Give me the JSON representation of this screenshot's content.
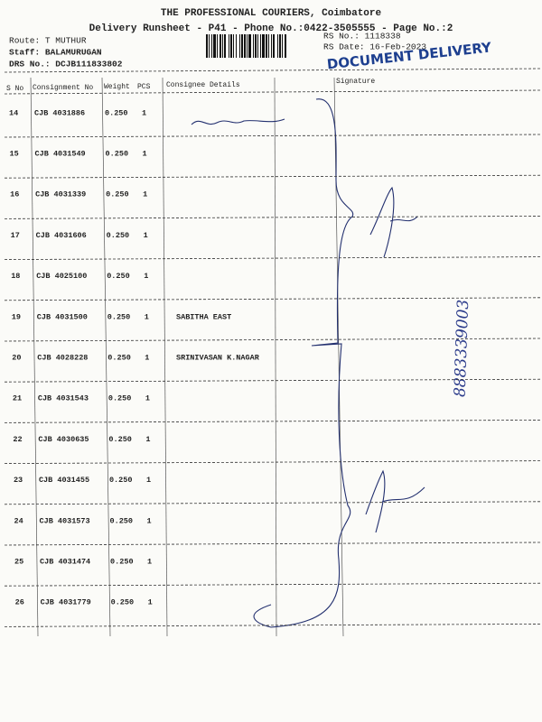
{
  "header": {
    "title": "THE PROFESSIONAL COURIERS, Coimbatore",
    "subtitle": "Delivery Runsheet - P41 - Phone No.:0422-3505555 - Page No.:2",
    "route": "Route: T MUTHUR",
    "staff": "Staff: BALAMURUGAN",
    "drs": "DRS No.: DCJB111833802",
    "rs_no": "RS No.: 1118338",
    "rs_date": "RS Date: 16-Feb-2023",
    "stamp": "DOCUMENT DELIVERY"
  },
  "table": {
    "columns": [
      "S No",
      "Consignment No",
      "Weight",
      "PCS",
      "Consignee Details",
      "Signature"
    ],
    "rows": [
      [
        14,
        "CJB 4031886",
        "0.250",
        1
      ],
      [
        15,
        "CJB 4031549",
        "0.250",
        1
      ],
      [
        16,
        "CJB 4031339",
        "0.250",
        1
      ],
      [
        17,
        "CJB 4031606",
        "0.250",
        1
      ],
      [
        18,
        "CJB 4025100",
        "0.250",
        1
      ],
      [
        19,
        "CJB 4031500",
        "0.250",
        1,
        "SABITHA  EAST"
      ],
      [
        20,
        "CJB 4028228",
        "0.250",
        1,
        "SRINIVASAN    K.NAGAR"
      ],
      [
        21,
        "CJB 4031543",
        "0.250",
        1
      ],
      [
        22,
        "CJB 4030635",
        "0.250",
        1
      ],
      [
        23,
        "CJB 4031455",
        "0.250",
        1
      ],
      [
        24,
        "CJB 4031573",
        "0.250",
        1
      ],
      [
        25,
        "CJB 4031474",
        "0.250",
        1
      ],
      [
        26,
        "CJB 4031779",
        "0.250",
        1
      ]
    ]
  },
  "handwritten_note": "8883339003"
}
